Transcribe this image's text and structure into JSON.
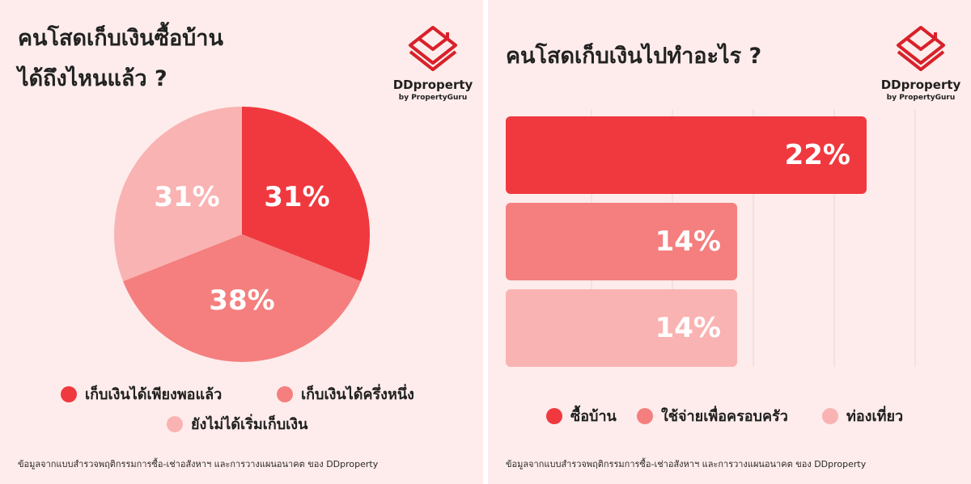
{
  "left_panel": {
    "title_line1": "คนโสดเก็บเงินซื้อบ้าน",
    "title_line2": "ได้ถึงไหนแล้ว ?",
    "legend": [
      "เก็บเงินได้เพียงพอแล้ว",
      "เก็บเงินได้ครึ่งหนึ่ง",
      "ยังไม่ได้เริ่มเก็บเงิน"
    ],
    "source": "ข้อมูลจากแบบสำรวจพฤติกรรมการซื้อ-เช่าอสังหาฯ และการวางแผนอนาคต ของ DDproperty"
  },
  "right_panel": {
    "title": "คนโสดเก็บเงินไปทำอะไร ?",
    "legend": [
      "ซื้อบ้าน",
      "ใช้จ่ายเพื่อครอบครัว",
      "ท่องเที่ยว"
    ],
    "source": "ข้อมูลจากแบบสำรวจพฤติกรรมการซื้อ-เช่าอสังหาฯ และการวางแผนอนาคต ของ DDproperty"
  },
  "logo": {
    "name": "DDproperty",
    "sub": "by PropertyGuru",
    "icon": "ddproperty-logo-icon"
  },
  "colors": {
    "background": "#fdeceb",
    "red": "#f0393f",
    "mid": "#f47f7e",
    "light": "#f9b3b2",
    "title": "#222222"
  },
  "chart_data": [
    {
      "type": "pie",
      "categories": [
        "เก็บเงินได้เพียงพอแล้ว",
        "เก็บเงินได้ครึ่งหนึ่ง",
        "ยังไม่ได้เริ่มเก็บเงิน"
      ],
      "values": [
        31,
        38,
        31
      ],
      "labels": [
        "31%",
        "38%",
        "31%"
      ],
      "colors": [
        "#f0393f",
        "#f47f7e",
        "#f9b3b2"
      ],
      "legend": "bottom"
    },
    {
      "type": "bar",
      "orientation": "horizontal",
      "categories": [
        "ซื้อบ้าน",
        "ใช้จ่ายเพื่อครอบครัว",
        "ท่องเที่ยว"
      ],
      "values": [
        22,
        14,
        14
      ],
      "labels": [
        "22%",
        "14%",
        "14%"
      ],
      "colors": [
        "#f0393f",
        "#f47f7e",
        "#f9b3b2"
      ],
      "xlim": [
        0,
        25
      ],
      "grid": true,
      "legend": "bottom"
    }
  ]
}
